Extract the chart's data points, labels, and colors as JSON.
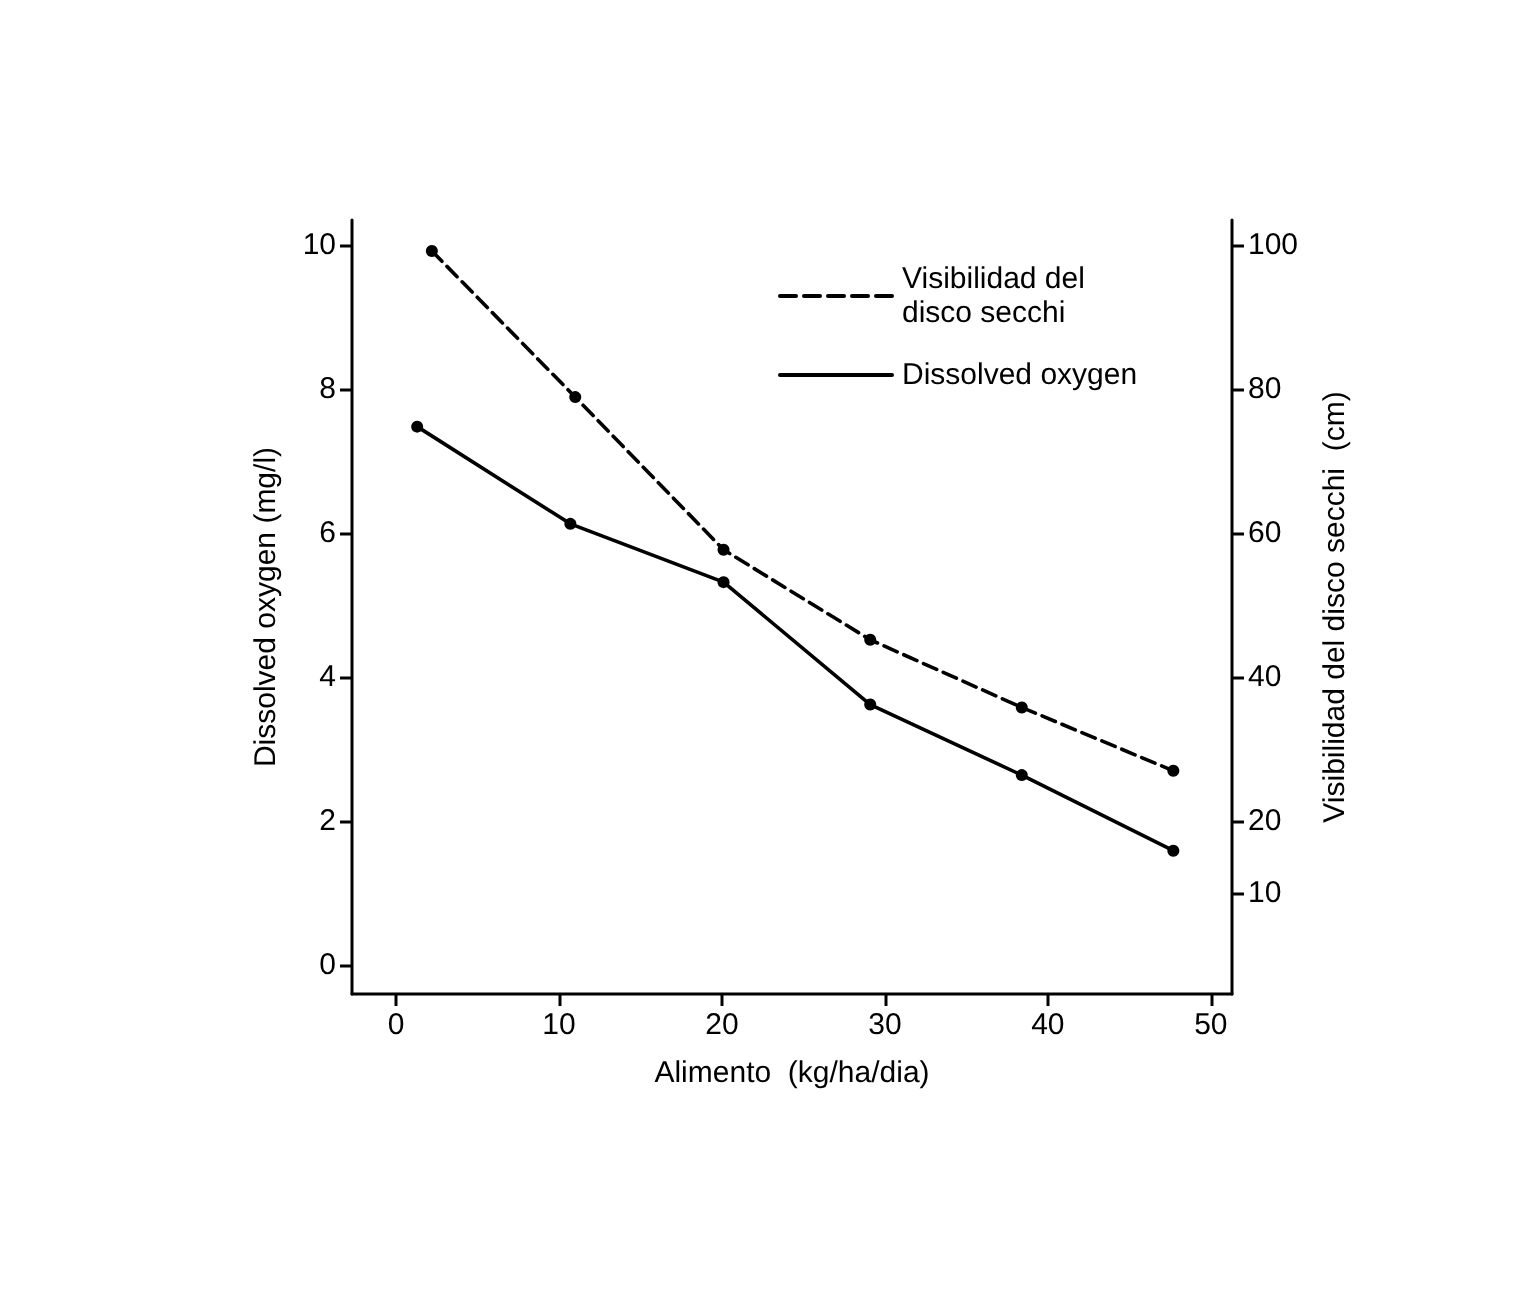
{
  "chart_data": {
    "type": "line",
    "xlabel": "Alimento  (kg/ha/dia)",
    "ylabel": "Dissolved oxygen (mg/l)",
    "y2label": "Visibilidad del disco secchi  (cm)",
    "xlim": [
      -2.7,
      51.3
    ],
    "xticks": [
      0,
      10,
      20,
      30,
      40,
      50
    ],
    "ylim": [
      -0.4,
      10.35
    ],
    "yticks": [
      0,
      2,
      4,
      6,
      8,
      10
    ],
    "y2lim": [
      -4,
      103.5
    ],
    "y2ticks": [
      10,
      20,
      40,
      60,
      80,
      100
    ],
    "grid": false,
    "legend": "top right",
    "marker": "circle",
    "series": [
      {
        "name": "Visibilidad del disco secchi",
        "color": "#000000",
        "axis": "y2",
        "line_style": "dashed",
        "x": [
          2.2,
          11,
          20.1,
          29.1,
          38.4,
          47.7
        ],
        "values": [
          99.2,
          78.9,
          57.7,
          45.2,
          35.8,
          27.0
        ]
      },
      {
        "name": "Dissolved oxygen",
        "color": "#000000",
        "line_style": "solid",
        "x": [
          1.3,
          10.7,
          20.1,
          29.1,
          38.4,
          47.7
        ],
        "values": [
          7.48,
          6.13,
          5.32,
          3.62,
          2.64,
          1.59
        ]
      }
    ]
  }
}
